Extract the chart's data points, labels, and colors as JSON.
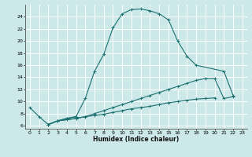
{
  "xlabel": "Humidex (Indice chaleur)",
  "bg_color": "#cce8e8",
  "grid_color": "#ffffff",
  "line_color": "#1a7070",
  "xlim": [
    -0.5,
    23.5
  ],
  "ylim": [
    5.5,
    26.0
  ],
  "xticks": [
    0,
    1,
    2,
    3,
    4,
    5,
    6,
    7,
    8,
    9,
    10,
    11,
    12,
    13,
    14,
    15,
    16,
    17,
    18,
    19,
    20,
    21,
    22,
    23
  ],
  "yticks": [
    6,
    8,
    10,
    12,
    14,
    16,
    18,
    20,
    22,
    24
  ],
  "series": [
    {
      "x": [
        0,
        1,
        2,
        3,
        4,
        5
      ],
      "y": [
        9.0,
        7.5,
        6.2,
        6.8,
        7.2,
        7.5
      ]
    },
    {
      "x": [
        2,
        3,
        4,
        5,
        6,
        7,
        8,
        9,
        10,
        11,
        12,
        13,
        14,
        15,
        16,
        17,
        18,
        21,
        22
      ],
      "y": [
        6.2,
        6.8,
        7.2,
        7.5,
        10.5,
        15.0,
        17.8,
        22.2,
        24.5,
        25.2,
        25.3,
        25.0,
        24.5,
        23.5,
        20.0,
        17.5,
        16.0,
        15.0,
        11.0
      ]
    },
    {
      "x": [
        2,
        3,
        4,
        5,
        6,
        7,
        8,
        9,
        10,
        11,
        12,
        13,
        14,
        15,
        16,
        17,
        18,
        19,
        20,
        21,
        22
      ],
      "y": [
        6.2,
        6.8,
        7.0,
        7.2,
        7.5,
        8.0,
        8.5,
        9.0,
        9.5,
        10.0,
        10.5,
        11.0,
        11.5,
        12.0,
        12.5,
        13.0,
        13.5,
        13.8,
        13.8,
        10.5,
        10.8
      ]
    },
    {
      "x": [
        2,
        3,
        4,
        5,
        6,
        7,
        8,
        9,
        10,
        11,
        12,
        13,
        14,
        15,
        16,
        17,
        18,
        19,
        20
      ],
      "y": [
        6.2,
        6.8,
        7.0,
        7.2,
        7.5,
        7.7,
        7.9,
        8.2,
        8.5,
        8.8,
        9.0,
        9.2,
        9.5,
        9.8,
        10.0,
        10.2,
        10.4,
        10.5,
        10.6
      ]
    }
  ]
}
